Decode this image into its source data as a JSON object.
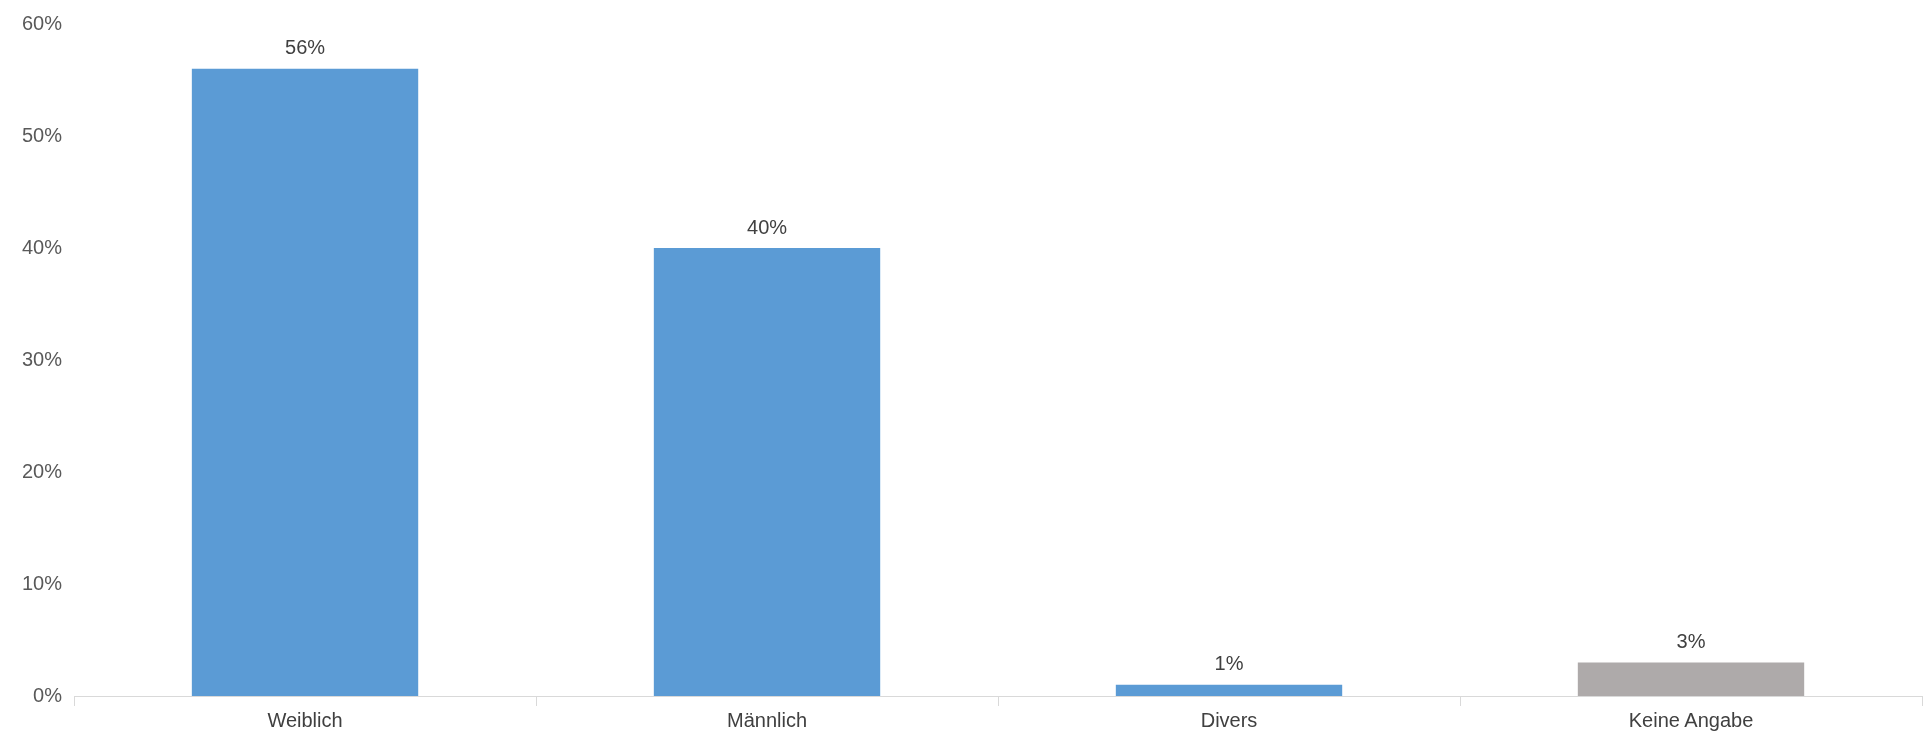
{
  "chart_data": {
    "type": "bar",
    "categories": [
      "Weiblich",
      "Männlich",
      "Divers",
      "Keine Angabe"
    ],
    "values": [
      56,
      40,
      1,
      3
    ],
    "colors": [
      "#5b9bd5",
      "#5b9bd5",
      "#5b9bd5",
      "#aeaaaa"
    ],
    "ylim": [
      0,
      60
    ],
    "yticks": [
      {
        "value": 0,
        "label": "0%"
      },
      {
        "value": 10,
        "label": "10%"
      },
      {
        "value": 20,
        "label": "20%"
      },
      {
        "value": 30,
        "label": "30%"
      },
      {
        "value": 40,
        "label": "40%"
      },
      {
        "value": 50,
        "label": "50%"
      },
      {
        "value": 60,
        "label": "60%"
      }
    ],
    "value_labels": [
      "56%",
      "40%",
      "1%",
      "3%"
    ],
    "grid": false,
    "legend": false
  }
}
